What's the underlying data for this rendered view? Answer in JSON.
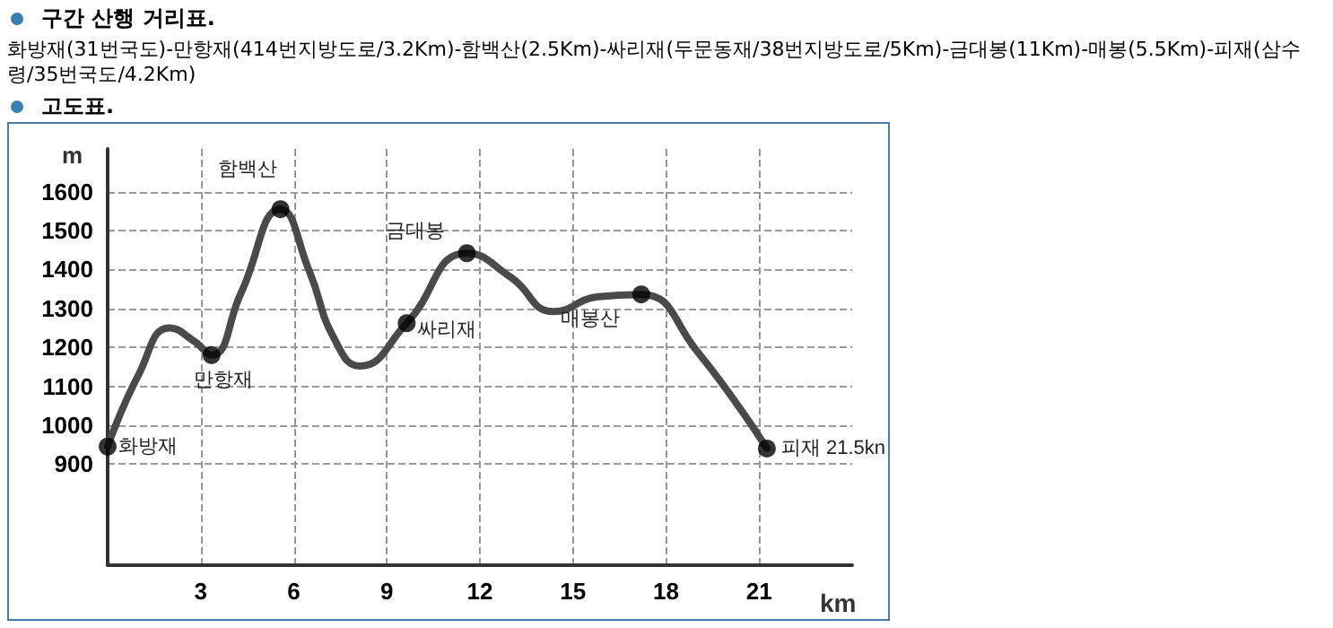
{
  "chart_data": {
    "type": "line",
    "title": "구간 산행 거리표.",
    "subtitle": "화방재(31번국도)-만항재(414번지방도로/3.2Km)-함백산(2.5Km)-싸리재(두문동재/38번지방도로/5Km)-금대봉(11Km)-매봉(5.5Km)-피재(삼수령/35번국도/4.2Km)",
    "xlabel": "km",
    "ylabel": "m",
    "annotations": [
      "고도표.",
      {
        "text": "화방재",
        "x": 0,
        "y": 945
      },
      {
        "text": "만항재",
        "x": 3.35,
        "y": 1180
      },
      {
        "text": "함백산",
        "x": 5.57,
        "y": 1555
      },
      {
        "text": "싸리재",
        "x": 9.64,
        "y": 1262
      },
      {
        "text": "금대봉",
        "x": 11.58,
        "y": 1442
      },
      {
        "text": "매봉산",
        "x": 17.2,
        "y": 1336
      },
      {
        "text": "피재 21.5kn",
        "x": 21.25,
        "y": 940
      }
    ],
    "series": [
      {
        "color": "#4a4a4a",
        "marker": "none",
        "x": [
          0,
          1,
          2,
          2.8,
          3.35,
          4.3,
          5.57,
          6.5,
          7.3,
          8.13,
          9.64,
          11.58,
          13,
          14.38,
          15.8,
          17.2,
          19,
          21.25
        ],
        "values": [
          945,
          1130,
          1250,
          1215,
          1180,
          1340,
          1555,
          1396,
          1223,
          1152,
          1262,
          1442,
          1380,
          1292,
          1330,
          1336,
          1190,
          940
        ]
      },
      {
        "type": "scatter",
        "color": "#000000",
        "marker": "circle",
        "x": [
          0,
          3.35,
          5.57,
          9.64,
          11.58,
          17.2,
          21.25
        ],
        "values": [
          945,
          1180,
          1555,
          1262,
          1442,
          1336,
          940
        ]
      }
    ],
    "xlim": [
      0,
      24
    ],
    "xticks": [
      3,
      6,
      9,
      12,
      15,
      18,
      21
    ],
    "ylim": [
      640,
      1710
    ],
    "yticks": [
      900,
      1000,
      1100,
      1200,
      1300,
      1400,
      1500,
      1600
    ],
    "grid": true,
    "line_style": "solid"
  }
}
